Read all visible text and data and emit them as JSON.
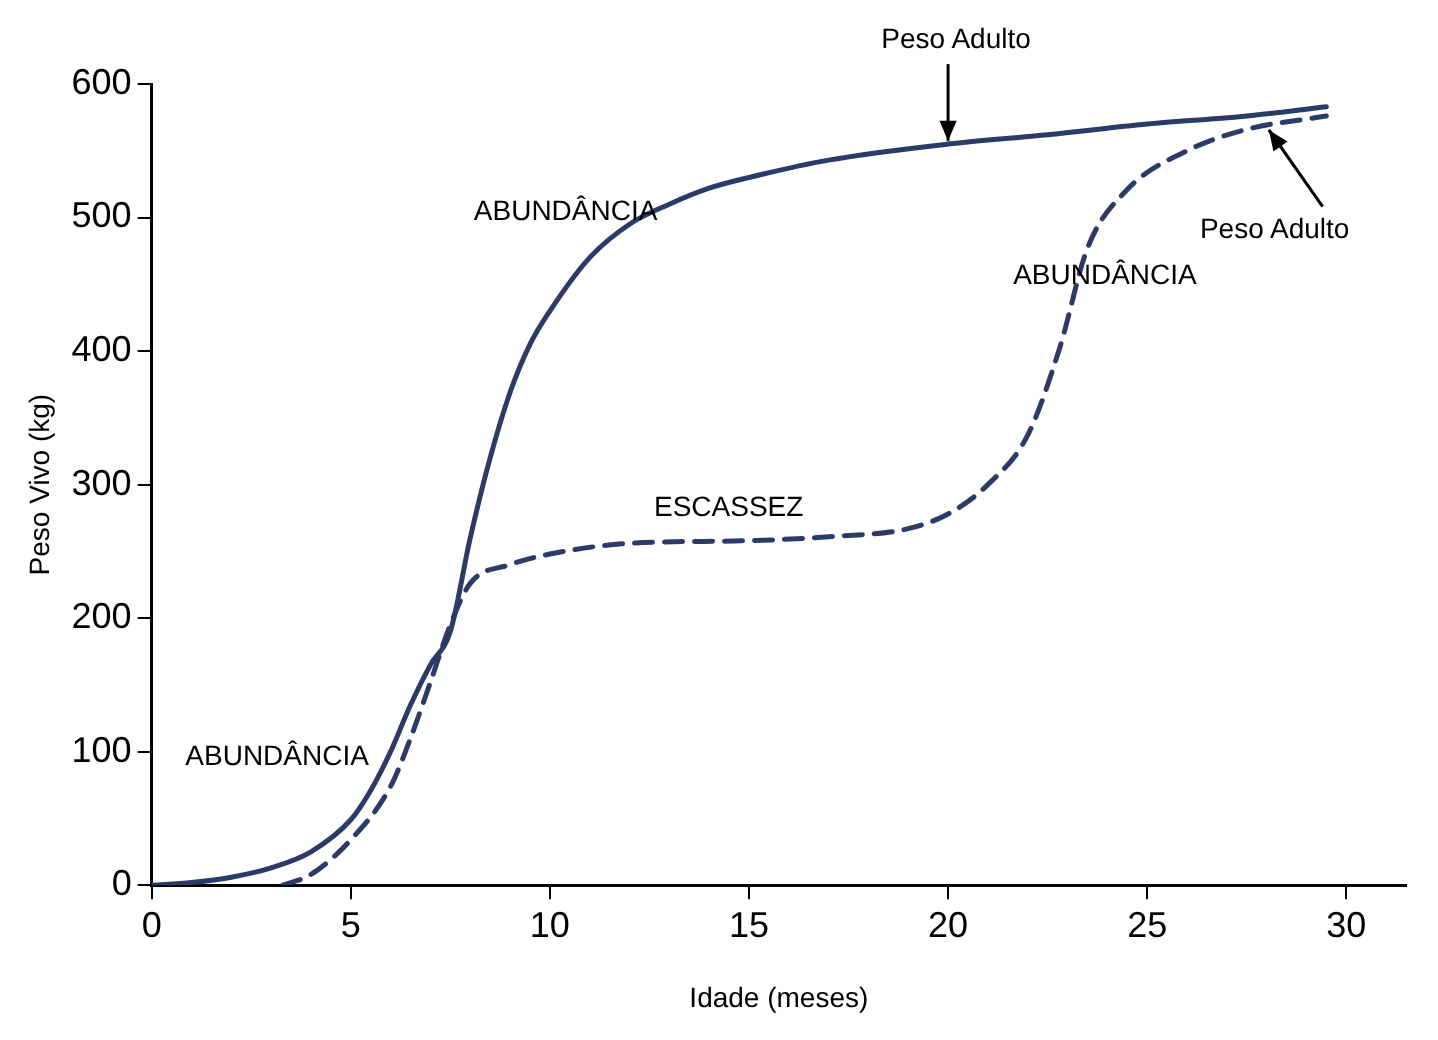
{
  "chart_data": {
    "type": "line",
    "xlabel": "Idade (meses)",
    "ylabel": "Peso Vivo (kg)",
    "xlim": [
      0,
      31.5
    ],
    "ylim": [
      0,
      600
    ],
    "xticks": [
      0,
      5,
      10,
      15,
      20,
      25,
      30
    ],
    "yticks": [
      0,
      100,
      200,
      300,
      400,
      500,
      600
    ],
    "grid": false,
    "legend": false,
    "marker": "none",
    "series": [
      {
        "color": "#2b3a67",
        "line_style": "solid",
        "x": [
          0,
          1,
          2,
          3,
          4,
          5,
          5.5,
          6,
          6.5,
          7,
          7.5,
          8,
          8.5,
          9,
          9.5,
          10,
          11,
          12,
          13,
          14,
          15,
          17,
          20,
          22.5,
          25,
          27.5,
          29.5
        ],
        "values": [
          0,
          2,
          6,
          13,
          25,
          49,
          71,
          100,
          135,
          165,
          190,
          260,
          320,
          369,
          405,
          430,
          470,
          495,
          510,
          522,
          530,
          543,
          555,
          562,
          570,
          576,
          583
        ]
      },
      {
        "color": "#2b3a67",
        "line_style": "dashed",
        "x": [
          3.3,
          4,
          5,
          6,
          6.5,
          7,
          7.5,
          8,
          9,
          10,
          12,
          15,
          17,
          19,
          20,
          21,
          22,
          22.8,
          23.5,
          24.5,
          26,
          27.5,
          29.5
        ],
        "values": [
          0,
          8,
          34,
          74,
          110,
          152,
          195,
          226,
          240,
          248,
          256,
          258,
          261,
          267,
          278,
          300,
          337,
          402,
          477,
          521,
          550,
          566,
          576
        ]
      }
    ],
    "annotations": [
      "ABUNDÂNCIA",
      "ABUNDÂNCIA",
      "ESCASSEZ",
      "ABUNDÂNCIA",
      {
        "text": "Peso Adulto",
        "x": 20,
        "y": 555
      },
      {
        "text": "Peso Adulto",
        "x": 28,
        "y": 568
      }
    ]
  }
}
